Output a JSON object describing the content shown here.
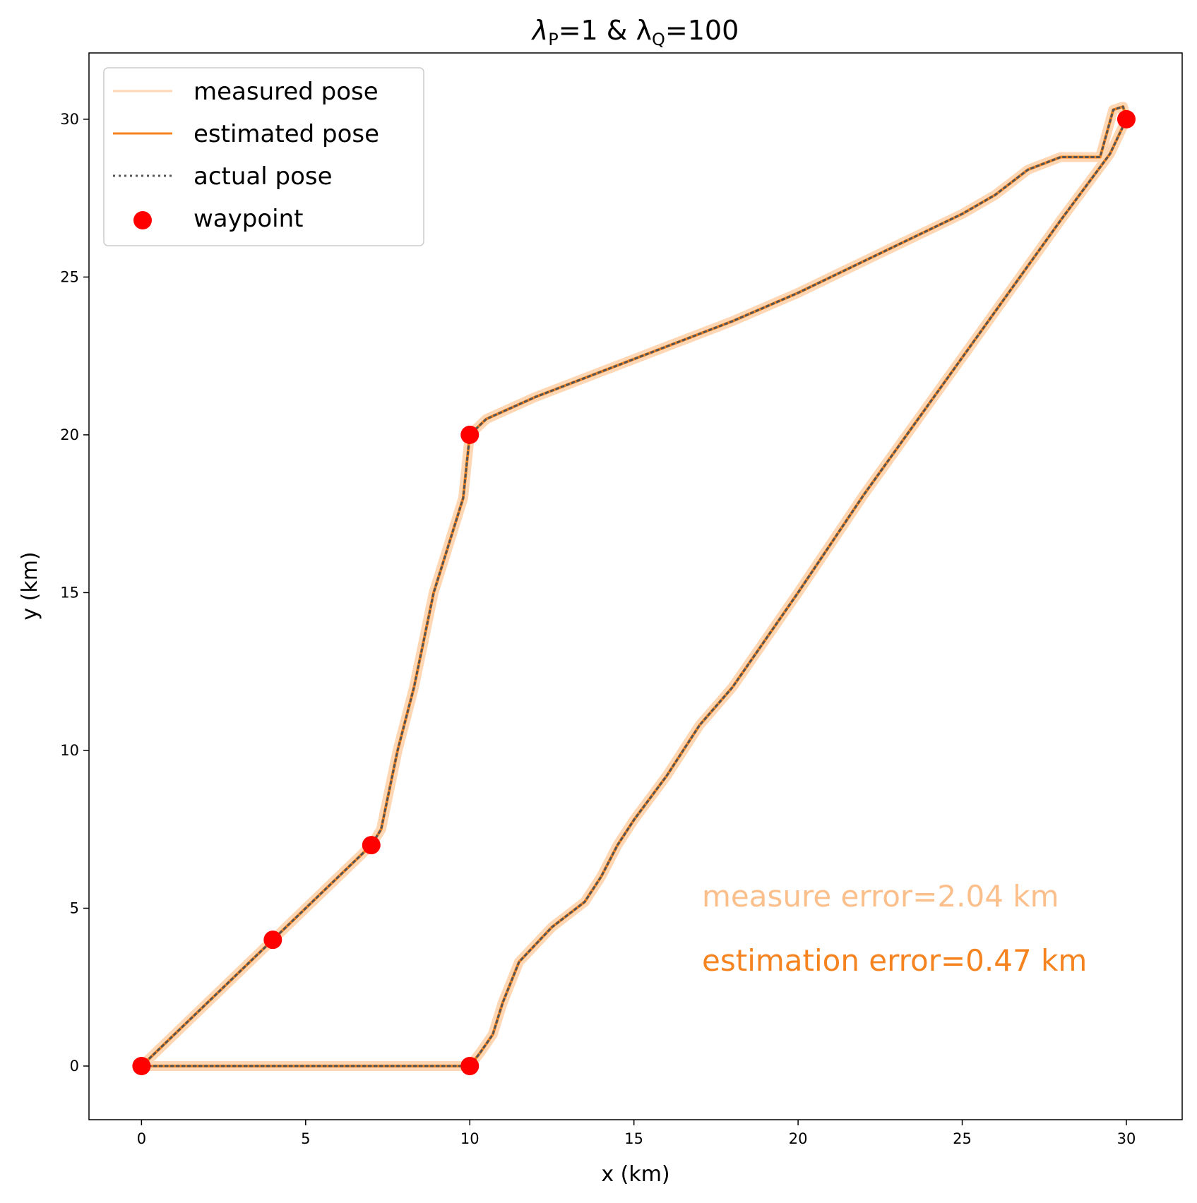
{
  "chart_data": {
    "type": "line",
    "title": "λP=1 & λQ=100",
    "title_main": "λ",
    "title_sub1": "P",
    "title_mid": "=1 & λ",
    "title_sub2": "Q",
    "title_end": "=100",
    "xlabel": "x (km)",
    "ylabel": "y (km)",
    "xlim": [
      -1.6,
      31.7
    ],
    "ylim": [
      -1.7,
      32.1
    ],
    "xticks": [
      0,
      5,
      10,
      15,
      20,
      25,
      30
    ],
    "yticks": [
      0,
      5,
      10,
      15,
      20,
      25,
      30
    ],
    "grid": false,
    "legend_position": "top-left",
    "series": [
      {
        "name": "measured pose",
        "color": "#ffd7b4",
        "style": "solid",
        "x": [
          0,
          2,
          4,
          5.5,
          7,
          7.3,
          7.5,
          7.8,
          8.3,
          8.6,
          8.9,
          9.2,
          9.5,
          9.8,
          10,
          10.5,
          12,
          14,
          16,
          18,
          20,
          22,
          24,
          25,
          26,
          27,
          28,
          29.2,
          29.6,
          29.9,
          30,
          29.5,
          28,
          26,
          24,
          22,
          20,
          18,
          17,
          16,
          15,
          14.5,
          14,
          13.5,
          12.5,
          11.5,
          11,
          10.7,
          10.3,
          10,
          8,
          6,
          4,
          2,
          0
        ],
        "y": [
          0,
          2,
          4,
          5.5,
          7,
          7.5,
          8.5,
          10,
          12,
          13.5,
          15,
          16,
          17,
          18,
          20,
          20.5,
          21.2,
          22,
          22.8,
          23.6,
          24.5,
          25.5,
          26.5,
          27,
          27.6,
          28.4,
          28.8,
          28.8,
          30.3,
          30.4,
          30,
          28.9,
          26.8,
          23.9,
          21.0,
          18.1,
          15.0,
          12.0,
          10.8,
          9.2,
          7.8,
          7.0,
          6.0,
          5.2,
          4.4,
          3.3,
          2.0,
          1.0,
          0.4,
          0,
          0,
          0,
          0,
          0,
          0
        ]
      },
      {
        "name": "estimated pose",
        "color": "#f5831f",
        "style": "solid",
        "x": [
          0,
          2,
          4,
          5.5,
          7,
          7.3,
          7.5,
          7.8,
          8.3,
          8.6,
          8.9,
          9.2,
          9.5,
          9.8,
          10,
          10.5,
          12,
          14,
          16,
          18,
          20,
          22,
          24,
          25,
          26,
          27,
          28,
          29.2,
          29.6,
          29.9,
          30,
          29.5,
          28,
          26,
          24,
          22,
          20,
          18,
          17,
          16,
          15,
          14.5,
          14,
          13.5,
          12.5,
          11.5,
          11,
          10.7,
          10.3,
          10,
          8,
          6,
          4,
          2,
          0
        ],
        "y": [
          0,
          2,
          4,
          5.5,
          7,
          7.5,
          8.5,
          10,
          12,
          13.5,
          15,
          16,
          17,
          18,
          20,
          20.5,
          21.2,
          22,
          22.8,
          23.6,
          24.5,
          25.5,
          26.5,
          27,
          27.6,
          28.4,
          28.8,
          28.8,
          30.3,
          30.4,
          30,
          28.9,
          26.8,
          23.9,
          21.0,
          18.1,
          15.0,
          12.0,
          10.8,
          9.2,
          7.8,
          7.0,
          6.0,
          5.2,
          4.4,
          3.3,
          2.0,
          1.0,
          0.4,
          0,
          0,
          0,
          0,
          0,
          0
        ]
      },
      {
        "name": "actual pose",
        "color": "#555555",
        "style": "dotted",
        "x": [
          0,
          2,
          4,
          5.5,
          7,
          7.3,
          7.5,
          7.8,
          8.3,
          8.6,
          8.9,
          9.2,
          9.5,
          9.8,
          10,
          10.5,
          12,
          14,
          16,
          18,
          20,
          22,
          24,
          25,
          26,
          27,
          28,
          29.2,
          29.6,
          29.9,
          30,
          29.5,
          28,
          26,
          24,
          22,
          20,
          18,
          17,
          16,
          15,
          14.5,
          14,
          13.5,
          12.5,
          11.5,
          11,
          10.7,
          10.3,
          10,
          8,
          6,
          4,
          2,
          0
        ],
        "y": [
          0,
          2,
          4,
          5.5,
          7,
          7.5,
          8.5,
          10,
          12,
          13.5,
          15,
          16,
          17,
          18,
          20,
          20.5,
          21.2,
          22,
          22.8,
          23.6,
          24.5,
          25.5,
          26.5,
          27,
          27.6,
          28.4,
          28.8,
          28.8,
          30.3,
          30.4,
          30,
          28.9,
          26.8,
          23.9,
          21.0,
          18.1,
          15.0,
          12.0,
          10.8,
          9.2,
          7.8,
          7.0,
          6.0,
          5.2,
          4.4,
          3.3,
          2.0,
          1.0,
          0.4,
          0,
          0,
          0,
          0,
          0,
          0
        ]
      },
      {
        "name": "waypoint",
        "type": "scatter",
        "color": "#ff0000",
        "x": [
          0,
          4,
          7,
          10,
          30,
          10
        ],
        "y": [
          0,
          4,
          7,
          20,
          30,
          0
        ]
      }
    ],
    "annotations": [
      {
        "text": "measure error=2.04 km",
        "color": "#fbbf8c"
      },
      {
        "text": "estimation error=0.47 km",
        "color": "#f5831f"
      }
    ]
  }
}
